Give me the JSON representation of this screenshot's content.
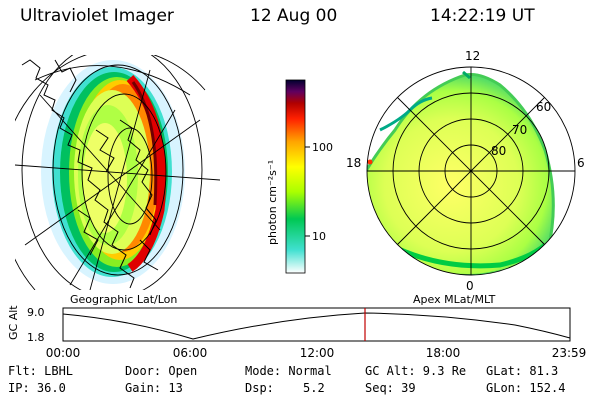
{
  "header": {
    "instrument": "Ultraviolet Imager",
    "date": "12 Aug 00",
    "time": "14:22:19 UT"
  },
  "colorbar": {
    "unit_label": "photon cm⁻²s⁻¹",
    "ticks": [
      "100",
      "10"
    ],
    "colors": [
      "#ffffff",
      "#40e0d0",
      "#00c853",
      "#aaff00",
      "#ffff00",
      "#ffa500",
      "#ff2000",
      "#b00000",
      "#600060",
      "#000030"
    ]
  },
  "geo_panel": {
    "caption": "Geographic Lat/Lon"
  },
  "polar_panel": {
    "caption": "Apex MLat/MLT",
    "mlt_labels": [
      "12",
      "18",
      "6",
      "0"
    ],
    "mlat_labels": [
      "60",
      "70",
      "80"
    ]
  },
  "timeline": {
    "ylabel": "GC Alt",
    "y_ticks": [
      "9.0",
      "1.8"
    ],
    "x_ticks": [
      "00:00",
      "06:00",
      "12:00",
      "18:00",
      "23:59"
    ],
    "marker_time": "14:22",
    "marker_color": "#c00000"
  },
  "info": {
    "filter": "Flt: LBHL",
    "ip": "IP: 36.0",
    "door": "Door: Open",
    "gain": "Gain: 13",
    "mode": "Mode: Normal",
    "dsp_label": "Dsp:",
    "dsp_value": "5.2",
    "gc_alt": "GC Alt: 9.3 Re",
    "seq": "Seq: 39",
    "glat": "GLat: 81.3",
    "glon": "GLon: 152.4"
  }
}
